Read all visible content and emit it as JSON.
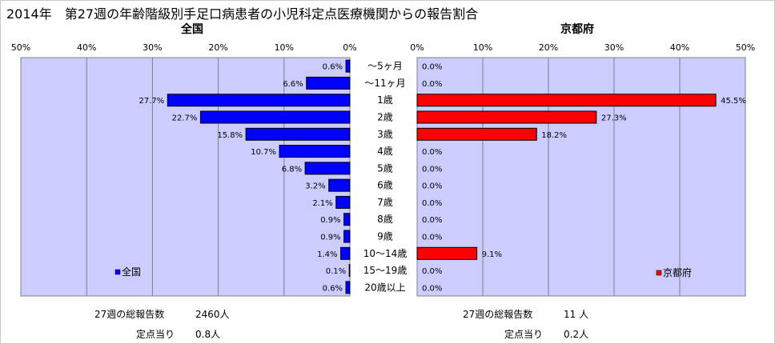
{
  "title": "2014年　第27週の年齢階級別手足口病患者の小児科定点医療機関からの報告割合",
  "chart_data": [
    {
      "type": "bar",
      "orientation": "horizontal",
      "direction": "right-to-left",
      "title": "全国",
      "categories": [
        "～5ヶ月",
        "～11ヶ月",
        "1歳",
        "2歳",
        "3歳",
        "4歳",
        "5歳",
        "6歳",
        "7歳",
        "8歳",
        "9歳",
        "10～14歳",
        "15～19歳",
        "20歳以上"
      ],
      "series": [
        {
          "name": "全国",
          "color": "#0000ff",
          "values": [
            0.6,
            6.6,
            27.7,
            22.7,
            15.8,
            10.7,
            6.8,
            3.2,
            2.1,
            0.9,
            0.9,
            1.4,
            0.1,
            0.6
          ],
          "labels": [
            "0.6%",
            "6.6%",
            "27.7%",
            "22.7%",
            "15.8%",
            "10.7%",
            "6.8%",
            "3.2%",
            "2.1%",
            "0.9%",
            "0.9%",
            "1.4%",
            "0.1%",
            "0.6%"
          ]
        }
      ],
      "xlim": [
        0,
        50
      ],
      "ticks": [
        "0%",
        "10%",
        "20%",
        "30%",
        "40%",
        "50%"
      ],
      "grid": true,
      "legend": "bottom-left"
    },
    {
      "type": "bar",
      "orientation": "horizontal",
      "direction": "left-to-right",
      "title": "京都府",
      "categories": [
        "～5ヶ月",
        "～11ヶ月",
        "1歳",
        "2歳",
        "3歳",
        "4歳",
        "5歳",
        "6歳",
        "7歳",
        "8歳",
        "9歳",
        "10～14歳",
        "15～19歳",
        "20歳以上"
      ],
      "series": [
        {
          "name": "京都府",
          "color": "#ff0000",
          "values": [
            0.0,
            0.0,
            45.5,
            27.3,
            18.2,
            0.0,
            0.0,
            0.0,
            0.0,
            0.0,
            0.0,
            9.1,
            0.0,
            0.0
          ],
          "labels": [
            "0.0%",
            "0.0%",
            "45.5%",
            "27.3%",
            "18.2%",
            "0.0%",
            "0.0%",
            "0.0%",
            "0.0%",
            "0.0%",
            "0.0%",
            "9.1%",
            "0.0%",
            "0.0%"
          ]
        }
      ],
      "xlim": [
        0,
        50
      ],
      "ticks": [
        "0%",
        "10%",
        "20%",
        "30%",
        "40%",
        "50%"
      ],
      "grid": true,
      "legend": "bottom-right"
    }
  ],
  "colors": {
    "plot_bg": "#ccccff",
    "left_bar": "#0000ff",
    "right_bar": "#ff0000"
  },
  "footer": {
    "national_label": "27週の総報告数",
    "national_total": "2460人",
    "national_per_label": "定点当り",
    "national_per": "0.8人",
    "kyoto_label": "27週の総報告数",
    "kyoto_total": "11 人",
    "kyoto_per_label": "定点当り",
    "kyoto_per": "0.2人"
  }
}
